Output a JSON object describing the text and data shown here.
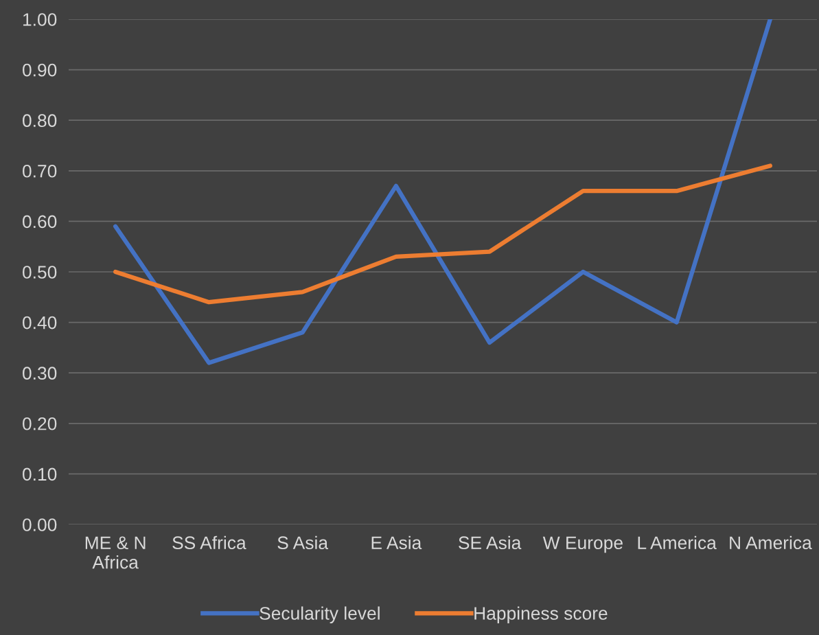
{
  "chart_data": {
    "type": "line",
    "categories": [
      "ME & N\nAfrica",
      "SS Africa",
      "S Asia",
      "E Asia",
      "SE Asia",
      "W Europe",
      "L America",
      "N America"
    ],
    "series": [
      {
        "name": "Secularity level",
        "color": "#4472c4",
        "values": [
          0.59,
          0.32,
          0.38,
          0.67,
          0.36,
          0.5,
          0.4,
          1.0
        ]
      },
      {
        "name": "Happiness score",
        "color": "#ed7d31",
        "values": [
          0.5,
          0.44,
          0.46,
          0.53,
          0.54,
          0.66,
          0.66,
          0.71
        ]
      }
    ],
    "ylim": [
      0,
      1
    ],
    "yticks": [
      {
        "value": 0,
        "label": "0.00"
      },
      {
        "value": 0.1,
        "label": "0.10"
      },
      {
        "value": 0.2,
        "label": "0.20"
      },
      {
        "value": 0.3,
        "label": "0.30"
      },
      {
        "value": 0.4,
        "label": "0.40"
      },
      {
        "value": 0.5,
        "label": "0.50"
      },
      {
        "value": 0.6,
        "label": "0.60"
      },
      {
        "value": 0.7,
        "label": "0.70"
      },
      {
        "value": 0.8,
        "label": "0.80"
      },
      {
        "value": 0.9,
        "label": "0.90"
      },
      {
        "value": 1,
        "label": "1.00"
      }
    ],
    "grid": "y",
    "legend": "bottom",
    "marker": "none",
    "line_style": "solid"
  }
}
